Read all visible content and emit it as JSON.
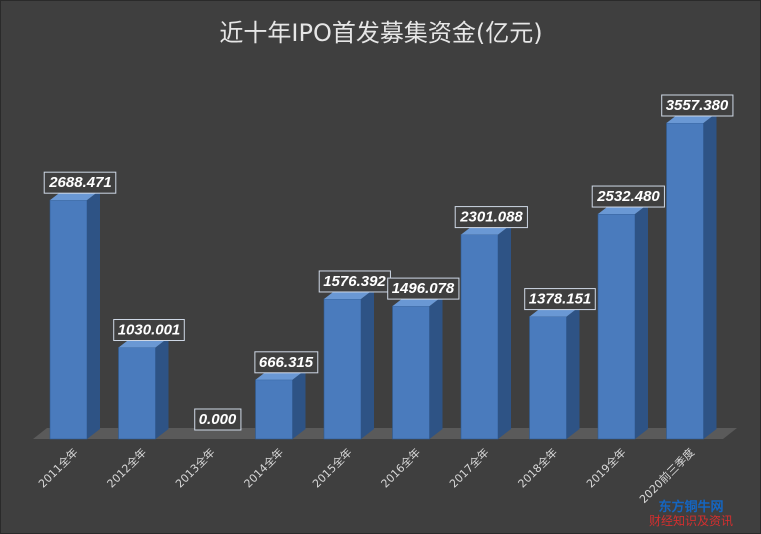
{
  "chart_data": {
    "type": "bar",
    "title": "近十年IPO首发募集资金(亿元)",
    "categories": [
      "2011全年",
      "2012全年",
      "2013全年",
      "2014全年",
      "2015全年",
      "2016全年",
      "2017全年",
      "2018全年",
      "2019全年",
      "2020前三季度"
    ],
    "values": [
      2688.471,
      1030.001,
      0.0,
      666.315,
      1576.392,
      1496.078,
      2301.088,
      1378.151,
      2532.48,
      3557.38
    ],
    "data_labels": [
      "2688.471",
      "1030.001",
      "0.000",
      "666.315",
      "1576.392",
      "1496.078",
      "2301.088",
      "1378.151",
      "2532.480",
      "3557.380"
    ],
    "ylim": [
      0,
      3800
    ],
    "grid": false,
    "legend": "none",
    "bar_color": "#4a7bbd",
    "background_color": "#3f3f3f"
  },
  "watermark": {
    "line1": "东方铜牛网",
    "line2": "财经知识及资讯"
  }
}
